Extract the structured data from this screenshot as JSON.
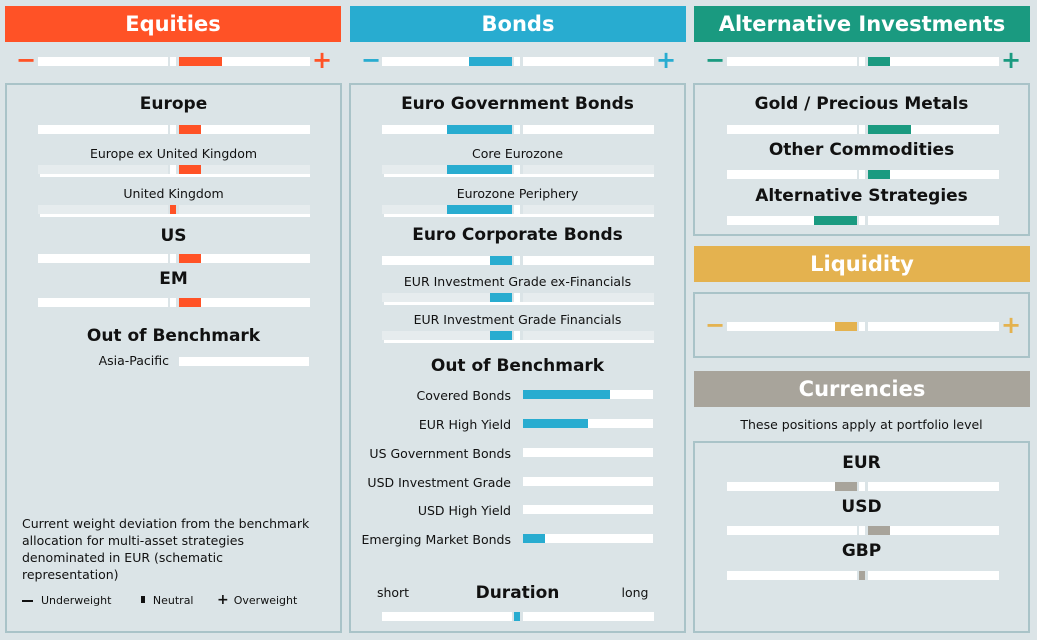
{
  "colors": {
    "equities": "#ff5226",
    "bonds": "#28acd0",
    "alternatives": "#1a9a80",
    "liquidity": "#e4b24f",
    "currencies": "#a8a49b"
  },
  "columns": {
    "equities": {
      "header": "Equities",
      "minus": "−",
      "plus": "+",
      "overall": 2,
      "items": [
        {
          "label": "Europe",
          "value": 1
        },
        {
          "label": "Europe ex United Kingdom",
          "value": 1
        },
        {
          "label": "United Kingdom",
          "value": 0
        },
        {
          "label": "US",
          "value": 1
        },
        {
          "label": "EM",
          "value": 1
        }
      ],
      "out_of_benchmark": {
        "title": "Out of Benchmark",
        "items": [
          {
            "label": "Asia-Pacific",
            "value": 0
          }
        ]
      },
      "note": "Current weight deviation from the benchmark allocation for multi-asset strategies denominated in EUR (schematic representation)",
      "legend": {
        "underweight": "Underweight",
        "neutral": "Neutral",
        "overweight": "Overweight"
      }
    },
    "bonds": {
      "header": "Bonds",
      "minus": "−",
      "plus": "+",
      "overall": -2,
      "items": [
        {
          "label": "Euro Government Bonds",
          "value": -3
        },
        {
          "label": "Core Eurozone",
          "value": -3
        },
        {
          "label": "Eurozone Periphery",
          "value": -3
        },
        {
          "label": "Euro Corporate Bonds",
          "value": -1
        },
        {
          "label": "EUR Investment Grade ex-Financials",
          "value": -1
        },
        {
          "label": "EUR Investment Grade Financials",
          "value": -1
        }
      ],
      "out_of_benchmark": {
        "title": "Out of Benchmark",
        "items": [
          {
            "label": "Covered Bonds",
            "value": 4
          },
          {
            "label": "EUR High Yield",
            "value": 3
          },
          {
            "label": "US Government Bonds",
            "value": 0
          },
          {
            "label": "USD Investment Grade",
            "value": 0
          },
          {
            "label": "USD High Yield",
            "value": 0
          },
          {
            "label": "Emerging Market Bonds",
            "value": 1
          }
        ]
      },
      "duration": {
        "title": "Duration",
        "short": "short",
        "long": "long",
        "value": 0
      }
    },
    "alternatives": {
      "header": "Alternative Investments",
      "minus": "−",
      "plus": "+",
      "overall": 1,
      "items": [
        {
          "label": "Gold / Precious Metals",
          "value": 2
        },
        {
          "label": "Other Commodities",
          "value": 1
        },
        {
          "label": "Alternative Strategies",
          "value": -2
        }
      ]
    },
    "liquidity": {
      "header": "Liquidity",
      "minus": "−",
      "plus": "+",
      "overall": -1
    },
    "currencies": {
      "header": "Currencies",
      "note": "These positions apply at portfolio level",
      "items": [
        {
          "label": "EUR",
          "value": -1
        },
        {
          "label": "USD",
          "value": 1
        },
        {
          "label": "GBP",
          "value": 0
        }
      ]
    }
  },
  "chart_data": {
    "type": "bar",
    "title": "Current weight deviation from the benchmark allocation for multi-asset strategies denominated in EUR (schematic representation)",
    "scale": "steps relative to neutral (negative = underweight, positive = overweight, 0 = neutral); out-of-benchmark bars = steps from zero (max 6)",
    "categories": [
      "Equities",
      "Europe",
      "Europe ex United Kingdom",
      "United Kingdom",
      "US",
      "EM",
      "Asia-Pacific",
      "Bonds",
      "Euro Government Bonds",
      "Core Eurozone",
      "Eurozone Periphery",
      "Euro Corporate Bonds",
      "EUR Investment Grade ex-Financials",
      "EUR Investment Grade Financials",
      "Covered Bonds",
      "EUR High Yield",
      "US Government Bonds",
      "USD Investment Grade",
      "USD High Yield",
      "Emerging Market Bonds",
      "Duration",
      "Alternative Investments",
      "Gold / Precious Metals",
      "Other Commodities",
      "Alternative Strategies",
      "Liquidity",
      "EUR",
      "USD",
      "GBP"
    ],
    "values": [
      2,
      1,
      1,
      0,
      1,
      1,
      0,
      -2,
      -3,
      -3,
      -3,
      -1,
      -1,
      -1,
      4,
      3,
      0,
      0,
      0,
      1,
      0,
      1,
      2,
      1,
      -2,
      -1,
      -1,
      1,
      0
    ],
    "legend": [
      "Underweight",
      "Neutral",
      "Overweight"
    ]
  }
}
